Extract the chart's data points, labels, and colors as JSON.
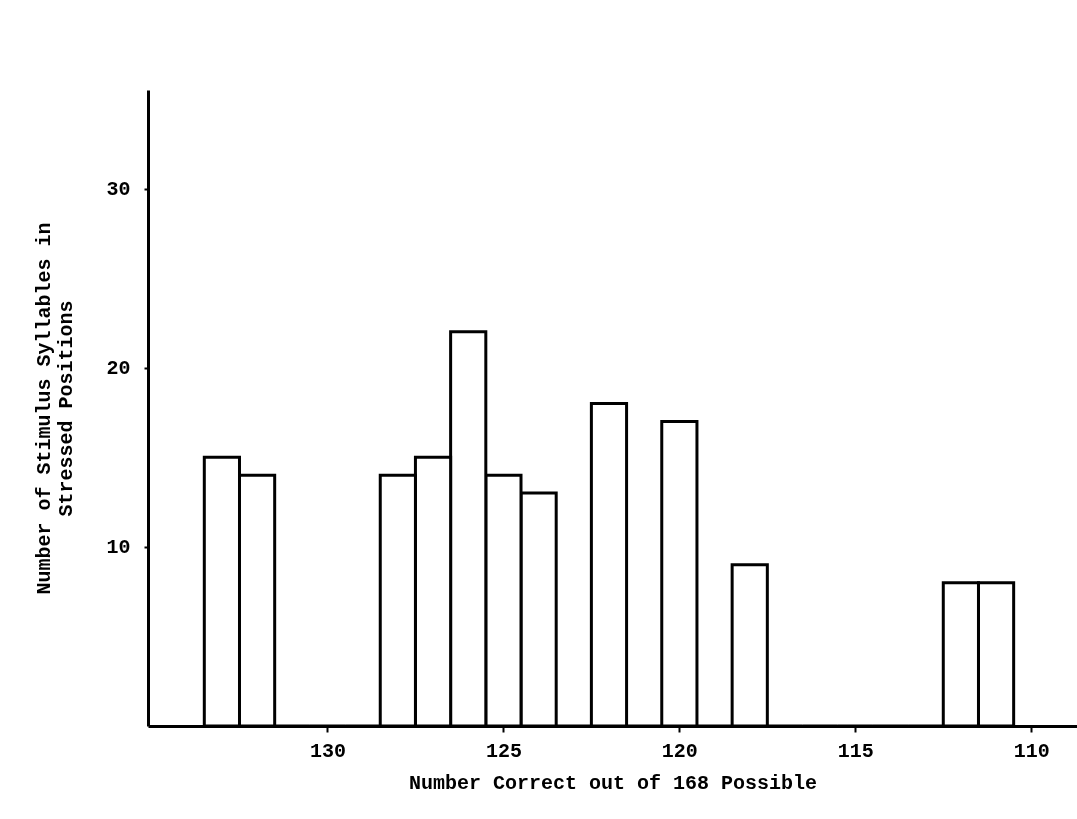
{
  "chart_data": {
    "type": "histogram",
    "xlabel": "Number Correct out of 168 Possible",
    "ylabel": "Number of Stimulus Syllables in\nStressed Positions",
    "bins": [
      110.5,
      111.5,
      112.5,
      113.5,
      114.5,
      115.5,
      116.5,
      117.5,
      118.5,
      119.5,
      120.5,
      121.5,
      122.5,
      123.5,
      124.5,
      125.5,
      126.5,
      127.5,
      128.5,
      129.5,
      130.5,
      131.5,
      132.5,
      133.5
    ],
    "values": [
      8,
      8,
      0,
      0,
      0,
      0,
      0,
      9,
      0,
      17,
      0,
      18,
      0,
      13,
      14,
      22,
      15,
      14,
      0,
      0,
      0,
      14,
      15
    ],
    "color": "#ffffff",
    "xlim": [
      135.1,
      108.7
    ],
    "xticks": [
      130,
      125,
      120,
      115,
      110
    ],
    "ylim": [
      0,
      35.5
    ],
    "yticks": [
      10,
      20,
      30
    ]
  }
}
